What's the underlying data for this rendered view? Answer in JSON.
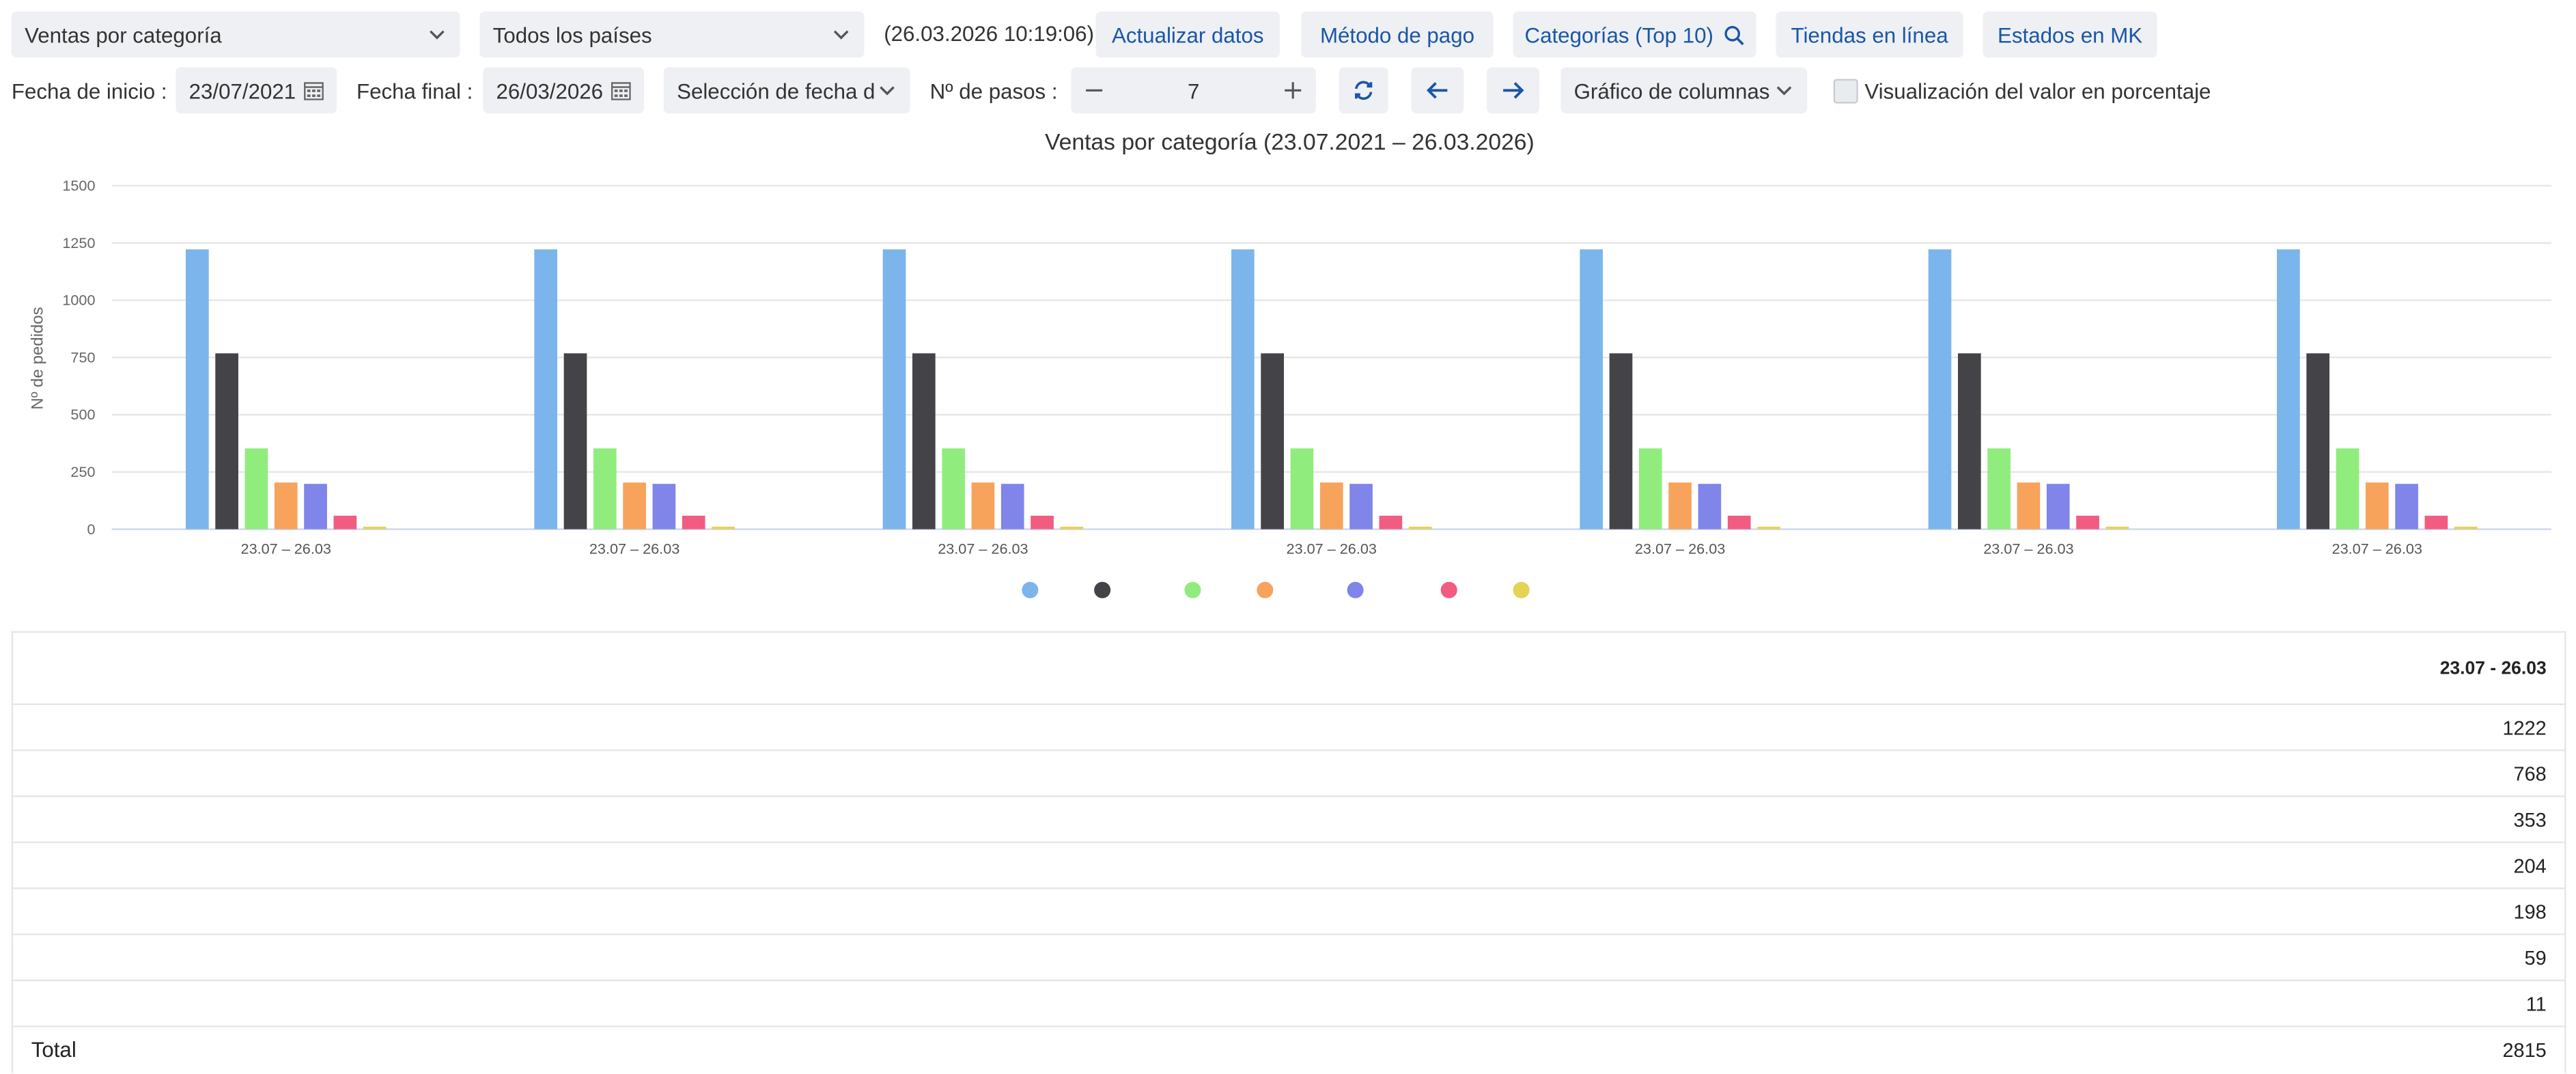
{
  "toolbar": {
    "report_select": "Ventas por categoría",
    "country_select": "Todos los países",
    "timestamp": "(26.03.2026 10:19:06)",
    "refresh_label": "Actualizar datos",
    "payment_label": "Método de pago",
    "categories_label": "Categorías (Top 10)",
    "online_label": "Tiendas en línea",
    "states_label": "Estados en MK"
  },
  "filters": {
    "start_label": "Fecha de inicio :",
    "start_value": "23/07/2021",
    "end_label": "Fecha final :",
    "end_value": "26/03/2026",
    "date_selection": "Selección de fecha d",
    "steps_label": "Nº de pasos :",
    "steps_value": "7",
    "chart_type": "Gráfico de columnas",
    "percent_label": "Visualización del valor en porcentaje"
  },
  "chart_data": {
    "type": "bar",
    "title": "Ventas por categoría (23.07.2021 – 26.03.2026)",
    "ylabel": "Nº de pedidos",
    "xlabel": "",
    "ylim": [
      0,
      1500
    ],
    "yticks": [
      0,
      250,
      500,
      750,
      1000,
      1250,
      1500
    ],
    "categories": [
      "23.07 – 26.03",
      "23.07 – 26.03",
      "23.07 – 26.03",
      "23.07 – 26.03",
      "23.07 – 26.03",
      "23.07 – 26.03",
      "23.07 – 26.03"
    ],
    "series": [
      {
        "values": [
          1222,
          1222,
          1222,
          1222,
          1222,
          1222,
          1222
        ],
        "color": "#7cb5ec"
      },
      {
        "values": [
          768,
          768,
          768,
          768,
          768,
          768,
          768
        ],
        "color": "#434348"
      },
      {
        "values": [
          353,
          353,
          353,
          353,
          353,
          353,
          353
        ],
        "color": "#90ed7d"
      },
      {
        "values": [
          204,
          204,
          204,
          204,
          204,
          204,
          204
        ],
        "color": "#f7a35c"
      },
      {
        "values": [
          198,
          198,
          198,
          198,
          198,
          198,
          198
        ],
        "color": "#8085e9"
      },
      {
        "values": [
          59,
          59,
          59,
          59,
          59,
          59,
          59
        ],
        "color": "#f15c80"
      },
      {
        "values": [
          11,
          11,
          11,
          11,
          11,
          11,
          11
        ],
        "color": "#e4d354"
      }
    ],
    "grid": true,
    "legend": "bottom-center"
  },
  "table": {
    "header": "23.07 - 26.03",
    "rows": [
      "1222",
      "768",
      "353",
      "204",
      "198",
      "59",
      "11"
    ],
    "total_label": "Total",
    "total_value": "2815"
  }
}
